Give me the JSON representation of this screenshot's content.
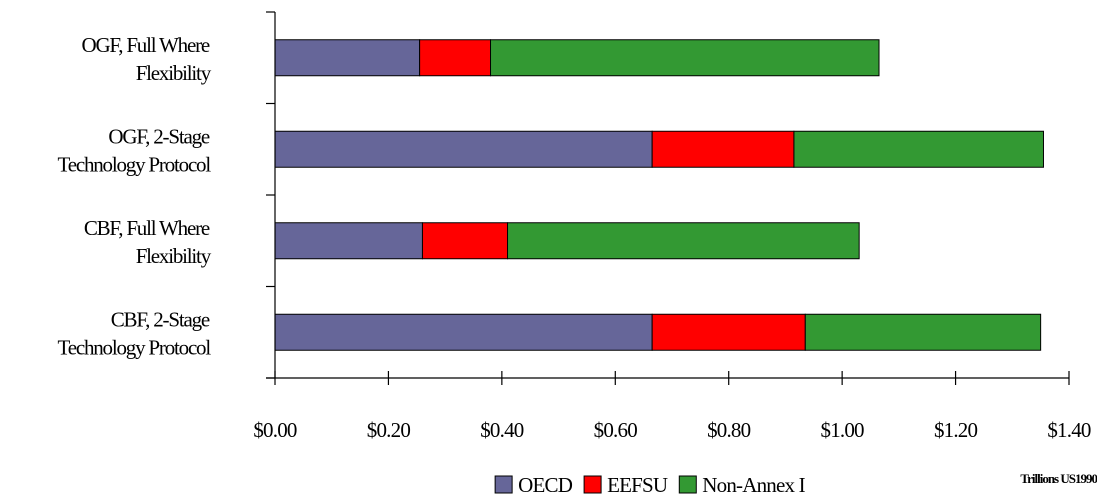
{
  "chart_data": {
    "type": "bar",
    "orientation": "horizontal",
    "stacked": true,
    "categories": [
      [
        "OGF, Full Where",
        "Flexibility"
      ],
      [
        "OGF, 2-Stage",
        "Technology Protocol"
      ],
      [
        "CBF, Full Where",
        "Flexibility"
      ],
      [
        "CBF, 2-Stage",
        "Technology Protocol"
      ]
    ],
    "series": [
      {
        "name": "OECD",
        "color": "#666699",
        "values": [
          0.255,
          0.665,
          0.26,
          0.665
        ]
      },
      {
        "name": "EEFSU",
        "color": "#ff0000",
        "values": [
          0.125,
          0.25,
          0.15,
          0.27
        ]
      },
      {
        "name": "Non-Annex I",
        "color": "#339933",
        "values": [
          0.685,
          0.44,
          0.62,
          0.415
        ]
      }
    ],
    "xlim": [
      0,
      1.4
    ],
    "xticks": [
      0,
      0.2,
      0.4,
      0.6,
      0.8,
      1.0,
      1.2,
      1.4
    ],
    "xtick_labels": [
      "$0.00",
      "$0.20",
      "$0.40",
      "$0.60",
      "$0.80",
      "$1.00",
      "$1.20",
      "$1.40"
    ],
    "unit_label": "Trillions US1990",
    "grid": false,
    "legend_position": "bottom-center",
    "title": "",
    "xlabel": "",
    "ylabel": ""
  }
}
